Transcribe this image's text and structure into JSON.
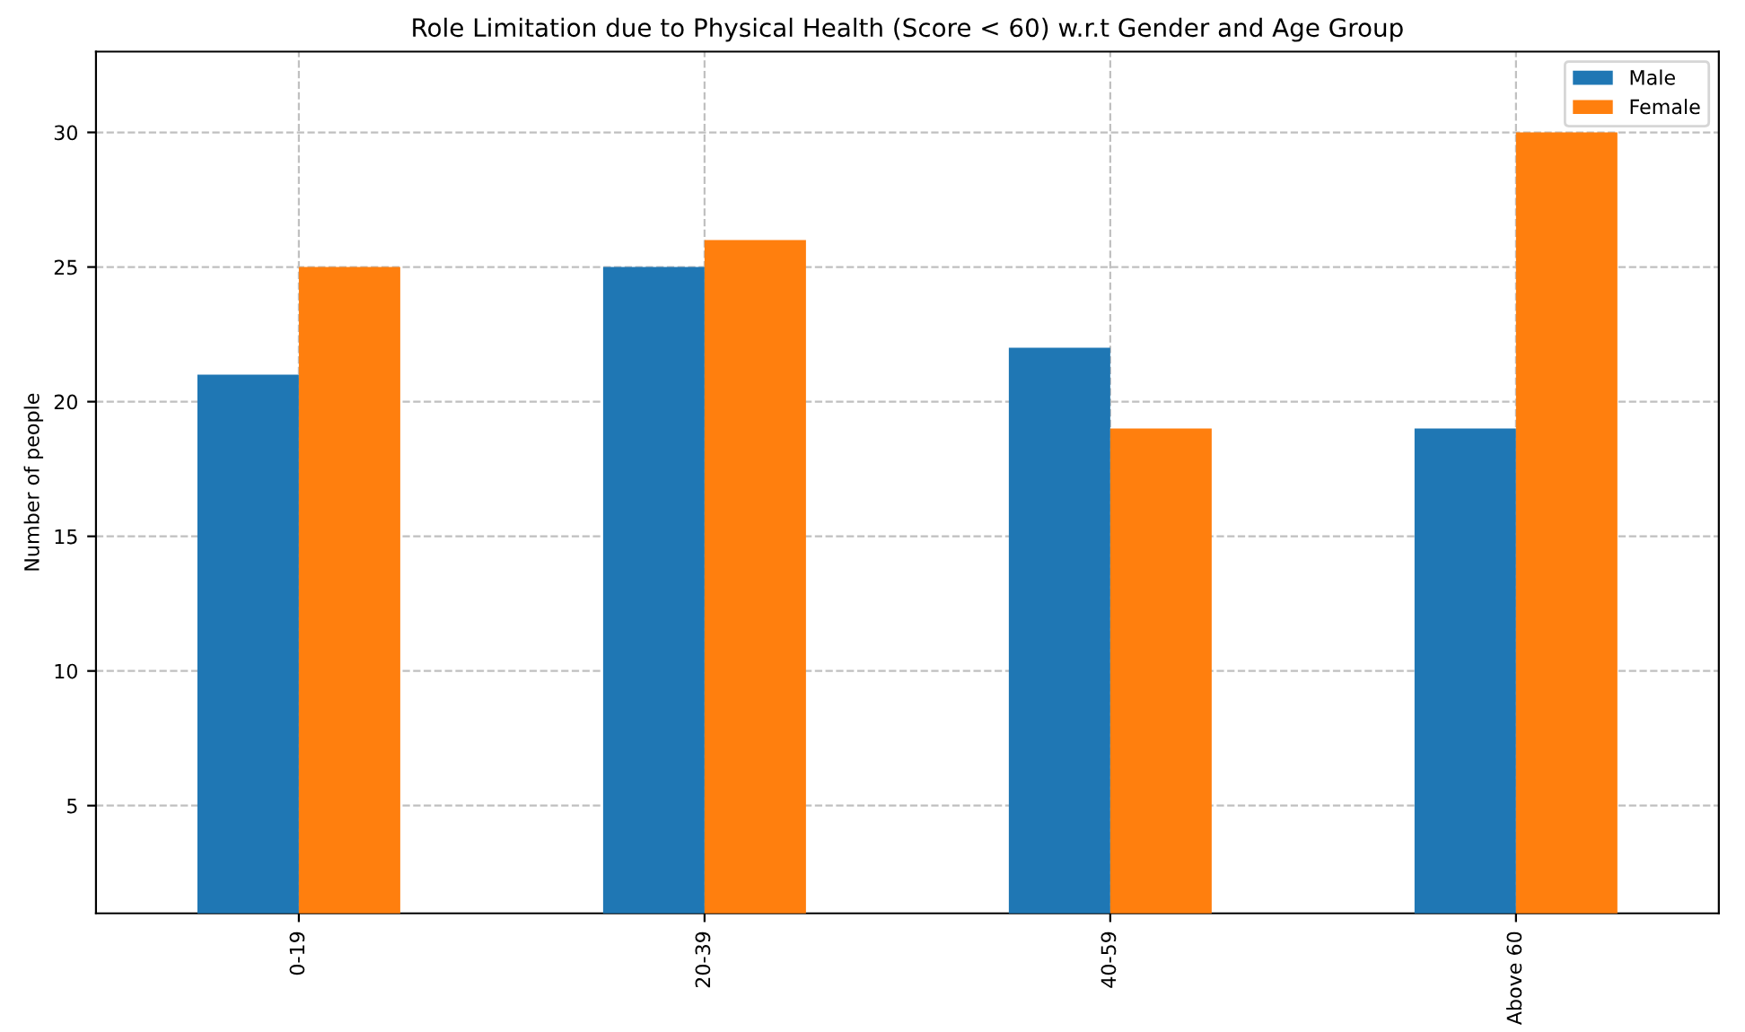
{
  "chart_data": {
    "type": "bar",
    "title": "Role Limitation due to Physical Health (Score < 60) w.r.t Gender and Age Group",
    "ylabel": "Number of people",
    "categories": [
      "0-19",
      "20-39",
      "40-59",
      "Above 60"
    ],
    "series": [
      {
        "name": "Male",
        "color": "#1f77b4",
        "values": [
          21,
          25,
          22,
          19
        ]
      },
      {
        "name": "Female",
        "color": "#ff7f0e",
        "values": [
          25,
          26,
          19,
          30
        ]
      }
    ],
    "ylim": [
      1,
      33
    ],
    "yticks": [
      5,
      10,
      15,
      20,
      25,
      30
    ],
    "grid": true,
    "legend": "top right"
  }
}
